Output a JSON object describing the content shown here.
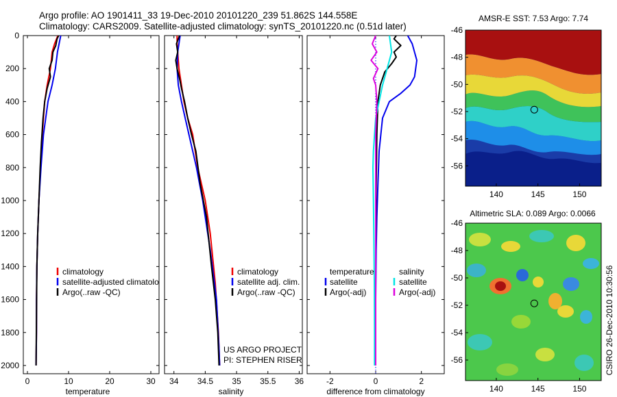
{
  "header": {
    "line1": "Argo profile: AO 1901411_33 19-Dec-2010 20101220_239 51.862S 144.558E",
    "line2": "Climatology: CARS2009. Satellite-adjusted climatology: synTS_20101220.nc (0.51d later)"
  },
  "colors": {
    "climatology": "#ee0000",
    "satellite": "#0000ee",
    "argo": "#000000",
    "satellite_salinity": "#00e5e5",
    "argo_salinity_adj": "#dd00dd"
  },
  "chart_data": [
    {
      "type": "line",
      "panel": "temperature",
      "xlabel": "temperature",
      "ylabel": "",
      "xlim": [
        -1,
        32
      ],
      "ylim": [
        2050,
        0
      ],
      "xticks": [
        0,
        10,
        20,
        30
      ],
      "yticks": [
        0,
        200,
        400,
        600,
        800,
        1000,
        1200,
        1400,
        1600,
        1800,
        2000
      ],
      "legend_position": "lower-right",
      "series": [
        {
          "name": "climatology",
          "color": "#ee0000",
          "x": [
            7.4,
            6.6,
            6.0,
            5.6,
            4.8,
            4.2,
            3.6,
            3.2,
            2.8,
            2.5,
            2.3,
            2.2,
            2.2,
            2.1
          ],
          "y": [
            0,
            50,
            100,
            200,
            300,
            400,
            600,
            800,
            1000,
            1200,
            1400,
            1600,
            1800,
            2000
          ]
        },
        {
          "name": "satellite-adjusted climatology",
          "color": "#0000ee",
          "x": [
            8.1,
            7.7,
            7.3,
            6.8,
            6.0,
            5.0,
            3.9,
            3.3,
            2.8,
            2.5,
            2.3,
            2.2,
            2.2,
            2.1
          ],
          "y": [
            0,
            50,
            100,
            200,
            300,
            400,
            600,
            800,
            1000,
            1200,
            1400,
            1600,
            1800,
            2000
          ]
        },
        {
          "name": "Argo(..raw -QC)",
          "color": "#000000",
          "x": [
            7.6,
            7.2,
            6.9,
            6.2,
            6.0,
            5.3,
            5.6,
            4.8,
            4.2,
            3.8,
            3.4,
            3.1,
            2.8,
            2.5,
            2.3,
            2.2,
            2.1
          ],
          "y": [
            0,
            20,
            60,
            100,
            150,
            200,
            250,
            320,
            400,
            500,
            650,
            800,
            1000,
            1200,
            1400,
            1700,
            2000
          ]
        }
      ]
    },
    {
      "type": "line",
      "panel": "salinity",
      "xlabel": "salinity",
      "ylabel": "",
      "xlim": [
        33.85,
        36.05
      ],
      "ylim": [
        2050,
        0
      ],
      "xticks": [
        34,
        34.5,
        35,
        35.5,
        36
      ],
      "legend_position": "lower-right",
      "series": [
        {
          "name": "climatology",
          "color": "#ee0000",
          "x": [
            34.05,
            34.05,
            34.06,
            34.08,
            34.12,
            34.16,
            34.22,
            34.3,
            34.38,
            34.5,
            34.58,
            34.66,
            34.71,
            34.73
          ],
          "y": [
            0,
            50,
            100,
            200,
            300,
            400,
            500,
            600,
            800,
            1000,
            1200,
            1500,
            1800,
            2000
          ]
        },
        {
          "name": "satellite adj. clim.",
          "color": "#0000ee",
          "x": [
            34.1,
            34.08,
            34.06,
            34.05,
            34.07,
            34.12,
            34.18,
            34.24,
            34.3,
            34.36,
            34.46,
            34.58,
            34.68,
            34.72,
            34.73
          ],
          "y": [
            0,
            50,
            100,
            200,
            300,
            400,
            500,
            600,
            700,
            800,
            1000,
            1300,
            1600,
            1900,
            2000
          ]
        },
        {
          "name": "Argo(..raw -QC)",
          "color": "#000000",
          "x": [
            34.09,
            34.04,
            34.06,
            34.03,
            34.05,
            34.09,
            34.12,
            34.17,
            34.22,
            34.28,
            34.35,
            34.42,
            34.52,
            34.6,
            34.66,
            34.7,
            34.72
          ],
          "y": [
            0,
            50,
            100,
            150,
            200,
            260,
            320,
            400,
            500,
            600,
            700,
            900,
            1100,
            1400,
            1600,
            1800,
            2000
          ]
        }
      ]
    },
    {
      "type": "line",
      "panel": "difference",
      "xlabel": "difference from climatology",
      "ylabel": "",
      "xlim": [
        -3,
        3
      ],
      "ylim": [
        2050,
        0
      ],
      "xticks": [
        -2,
        0,
        2
      ],
      "legend_groups": [
        {
          "title": "temperature",
          "entries": [
            "satellite",
            "Argo(-adj)"
          ]
        },
        {
          "title": "salinity",
          "entries": [
            "satellite",
            "Argo(-adj)"
          ]
        }
      ],
      "series": [
        {
          "name": "temperature satellite",
          "color": "#0000ee",
          "x": [
            1.4,
            1.6,
            1.8,
            1.7,
            1.5,
            1.1,
            0.6,
            0.3,
            0.15,
            0.1,
            0.05,
            0.02,
            0.0,
            0.0
          ],
          "y": [
            0,
            50,
            150,
            250,
            300,
            350,
            400,
            500,
            700,
            900,
            1100,
            1300,
            1600,
            2000
          ]
        },
        {
          "name": "temperature Argo(-adj)",
          "color": "#000000",
          "x": [
            0.9,
            0.8,
            1.1,
            0.8,
            0.9,
            0.7,
            0.4,
            0.2,
            0.1,
            0.05,
            0.02,
            0.0,
            0.0
          ],
          "y": [
            0,
            20,
            60,
            100,
            130,
            170,
            220,
            300,
            400,
            600,
            900,
            1300,
            2000
          ]
        },
        {
          "name": "salinity satellite",
          "color": "#00e5e5",
          "x": [
            0.6,
            0.7,
            0.5,
            0.3,
            0.15,
            0.0,
            -0.05,
            -0.1,
            -0.12,
            -0.1,
            -0.08,
            -0.06,
            -0.05,
            -0.05
          ],
          "y": [
            0,
            100,
            200,
            300,
            400,
            500,
            600,
            700,
            800,
            1000,
            1200,
            1500,
            1800,
            2000
          ]
        },
        {
          "name": "salinity Argo(-adj)",
          "color": "#dd00dd",
          "x": [
            0.0,
            -0.15,
            0.05,
            -0.2,
            0.1,
            -0.1,
            0.0,
            0.05,
            0.0,
            0.0
          ],
          "y": [
            0,
            50,
            100,
            150,
            200,
            260,
            300,
            400,
            600,
            2000
          ]
        }
      ]
    },
    {
      "type": "heatmap",
      "panel": "sst-map",
      "title": "AMSR-E SST: 7.53 Argo: 7.74",
      "xlim": [
        136.3,
        152.6
      ],
      "ylim": [
        -57.5,
        -46
      ],
      "xticks": [
        140,
        145,
        150
      ],
      "yticks": [
        -46,
        -48,
        -50,
        -52,
        -54,
        -56
      ],
      "marker": {
        "lon": 144.558,
        "lat": -51.862
      }
    },
    {
      "type": "heatmap",
      "panel": "sla-map",
      "title": "Altimetric SLA: 0.089 Argo: 0.0066",
      "xlim": [
        136.3,
        152.6
      ],
      "ylim": [
        -57.5,
        -46
      ],
      "xticks": [
        140,
        145,
        150
      ],
      "yticks": [
        -46,
        -48,
        -50,
        -52,
        -54,
        -56
      ],
      "marker": {
        "lon": 144.558,
        "lat": -51.862
      }
    }
  ],
  "legends": {
    "temperature": [
      "climatology",
      "satellite-adjusted climatology",
      "Argo(..raw -QC)"
    ],
    "salinity": [
      "climatology",
      "satellite adj. clim.",
      "Argo(..raw -QC)"
    ],
    "difference": {
      "temperature_title": "temperature",
      "salinity_title": "salinity",
      "temp_entries": [
        "satellite",
        "Argo(-adj)"
      ],
      "sal_entries": [
        "satellite",
        "Argo(-adj)"
      ]
    }
  },
  "annotations": {
    "project": "US ARGO PROJECT",
    "pi": "PI: STEPHEN RISER",
    "credit": "CSIRO 26-Dec-2010 10:30:56"
  }
}
